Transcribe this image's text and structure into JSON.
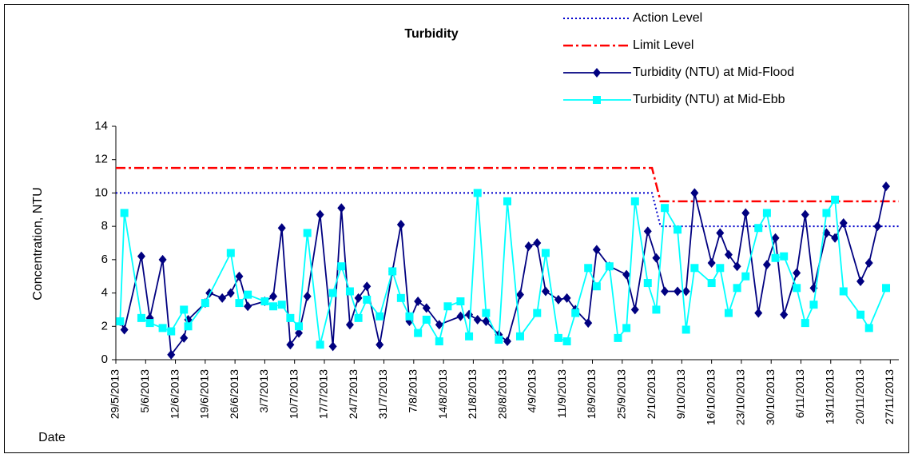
{
  "chart_data": {
    "type": "line",
    "title": "Turbidity",
    "x_label": "Date",
    "y_label": "Concentration, NTU",
    "xlim": [
      "29/5/2013",
      "29/11/2013"
    ],
    "xticks": [
      "29/5/2013",
      "5/6/2013",
      "12/6/2013",
      "19/6/2013",
      "26/6/2013",
      "3/7/2013",
      "10/7/2013",
      "17/7/2013",
      "24/7/2013",
      "31/7/2013",
      "7/8/2013",
      "14/8/2013",
      "21/8/2013",
      "28/8/2013",
      "4/9/2013",
      "11/9/2013",
      "18/9/2013",
      "25/9/2013",
      "2/10/2013",
      "9/10/2013",
      "16/10/2013",
      "23/10/2013",
      "30/10/2013",
      "6/11/2013",
      "13/11/2013",
      "20/11/2013",
      "27/11/2013"
    ],
    "ylim": [
      0,
      14
    ],
    "yticks": [
      0,
      2,
      4,
      6,
      8,
      10,
      12,
      14
    ],
    "grid": false,
    "series": [
      {
        "name": "Action Level",
        "color": "#0000cc",
        "dash": "dotted",
        "marker": "none",
        "x": [
          "29/5/2013",
          "2/10/2013",
          "4/10/2013",
          "29/11/2013"
        ],
        "values": [
          10,
          10,
          8,
          8
        ]
      },
      {
        "name": "Limit Level",
        "color": "#ff0000",
        "dash": "dash-dot",
        "marker": "none",
        "x": [
          "29/5/2013",
          "2/10/2013",
          "4/10/2013",
          "29/11/2013"
        ],
        "values": [
          11.5,
          11.5,
          9.5,
          9.5
        ]
      },
      {
        "name": "Turbidity (NTU) at Mid-Flood",
        "color": "#000080",
        "dash": "solid",
        "marker": "diamond",
        "x": [
          "30/5/2013",
          "31/5/2013",
          "4/6/2013",
          "6/6/2013",
          "9/6/2013",
          "11/6/2013",
          "14/6/2013",
          "15/6/2013",
          "19/6/2013",
          "20/6/2013",
          "23/6/2013",
          "25/6/2013",
          "27/6/2013",
          "29/6/2013",
          "3/7/2013",
          "5/7/2013",
          "7/7/2013",
          "9/7/2013",
          "11/7/2013",
          "13/7/2013",
          "16/7/2013",
          "19/7/2013",
          "21/7/2013",
          "23/7/2013",
          "25/7/2013",
          "27/7/2013",
          "30/7/2013",
          "2/8/2013",
          "4/8/2013",
          "6/8/2013",
          "8/8/2013",
          "10/8/2013",
          "13/8/2013",
          "18/8/2013",
          "20/8/2013",
          "22/8/2013",
          "24/8/2013",
          "27/8/2013",
          "29/8/2013",
          "1/9/2013",
          "3/9/2013",
          "5/9/2013",
          "7/9/2013",
          "10/9/2013",
          "12/9/2013",
          "14/9/2013",
          "17/9/2013",
          "19/9/2013",
          "22/9/2013",
          "26/9/2013",
          "28/9/2013",
          "1/10/2013",
          "3/10/2013",
          "5/10/2013",
          "8/10/2013",
          "10/10/2013",
          "12/10/2013",
          "16/10/2013",
          "18/10/2013",
          "20/10/2013",
          "22/10/2013",
          "24/10/2013",
          "27/10/2013",
          "29/10/2013",
          "31/10/2013",
          "2/11/2013",
          "5/11/2013",
          "7/11/2013",
          "9/11/2013",
          "12/11/2013",
          "14/11/2013",
          "16/11/2013",
          "20/11/2013",
          "22/11/2013",
          "24/11/2013",
          "26/11/2013"
        ],
        "values": [
          2.3,
          1.8,
          6.2,
          2.5,
          6.0,
          0.3,
          1.3,
          2.4,
          3.4,
          4.0,
          3.7,
          4.0,
          5.0,
          3.2,
          3.5,
          3.8,
          7.9,
          0.9,
          1.6,
          3.8,
          8.7,
          0.8,
          9.1,
          2.1,
          3.7,
          4.4,
          0.9,
          5.3,
          8.1,
          2.3,
          3.5,
          3.1,
          2.1,
          2.6,
          2.7,
          2.4,
          2.3,
          1.5,
          1.1,
          3.9,
          6.8,
          7.0,
          4.1,
          3.6,
          3.7,
          3.0,
          2.2,
          6.6,
          5.6,
          5.1,
          3.0,
          7.7,
          6.1,
          4.1,
          4.1,
          4.1,
          10.0,
          5.8,
          7.6,
          6.3,
          5.6,
          8.8,
          2.8,
          5.7,
          7.3,
          2.7,
          5.2,
          8.7,
          4.3,
          7.6,
          7.3,
          8.2,
          4.7,
          5.8,
          8.0,
          10.4
        ]
      },
      {
        "name": "Turbidity (NTU) at Mid-Ebb",
        "color": "#00ffff",
        "dash": "solid",
        "marker": "square",
        "x": [
          "30/5/2013",
          "31/5/2013",
          "4/6/2013",
          "6/6/2013",
          "9/6/2013",
          "11/6/2013",
          "14/6/2013",
          "15/6/2013",
          "19/6/2013",
          "25/6/2013",
          "27/6/2013",
          "29/6/2013",
          "3/7/2013",
          "5/7/2013",
          "7/7/2013",
          "9/7/2013",
          "11/7/2013",
          "13/7/2013",
          "16/7/2013",
          "19/7/2013",
          "21/7/2013",
          "23/7/2013",
          "25/7/2013",
          "27/7/2013",
          "30/7/2013",
          "2/8/2013",
          "4/8/2013",
          "6/8/2013",
          "8/8/2013",
          "10/8/2013",
          "13/8/2013",
          "15/8/2013",
          "18/8/2013",
          "20/8/2013",
          "22/8/2013",
          "24/8/2013",
          "27/8/2013",
          "29/8/2013",
          "1/9/2013",
          "5/9/2013",
          "7/9/2013",
          "10/9/2013",
          "12/9/2013",
          "14/9/2013",
          "17/9/2013",
          "19/9/2013",
          "22/9/2013",
          "24/9/2013",
          "26/9/2013",
          "28/9/2013",
          "1/10/2013",
          "3/10/2013",
          "5/10/2013",
          "8/10/2013",
          "10/10/2013",
          "12/10/2013",
          "16/10/2013",
          "18/10/2013",
          "20/10/2013",
          "22/10/2013",
          "24/10/2013",
          "27/10/2013",
          "29/10/2013",
          "31/10/2013",
          "2/11/2013",
          "5/11/2013",
          "7/11/2013",
          "9/11/2013",
          "12/11/2013",
          "14/11/2013",
          "16/11/2013",
          "20/11/2013",
          "22/11/2013",
          "26/11/2013"
        ],
        "values": [
          2.3,
          8.8,
          2.5,
          2.2,
          1.9,
          1.7,
          3.0,
          2.0,
          3.4,
          6.4,
          3.4,
          3.9,
          3.5,
          3.2,
          3.3,
          2.5,
          2.0,
          7.6,
          0.9,
          4.0,
          5.6,
          4.1,
          2.5,
          3.6,
          2.6,
          5.3,
          3.7,
          2.6,
          1.6,
          2.4,
          1.1,
          3.2,
          3.5,
          1.4,
          10.0,
          2.8,
          1.2,
          9.5,
          1.4,
          2.8,
          6.4,
          1.3,
          1.1,
          2.8,
          5.5,
          4.4,
          5.6,
          1.3,
          1.9,
          9.5,
          4.6,
          3.0,
          9.1,
          7.8,
          1.8,
          5.5,
          4.6,
          5.5,
          2.8,
          4.3,
          5.0,
          7.9,
          8.8,
          6.1,
          6.2,
          4.3,
          2.2,
          3.3,
          8.8,
          9.6,
          4.1,
          2.7,
          1.9,
          4.3
        ]
      }
    ]
  }
}
